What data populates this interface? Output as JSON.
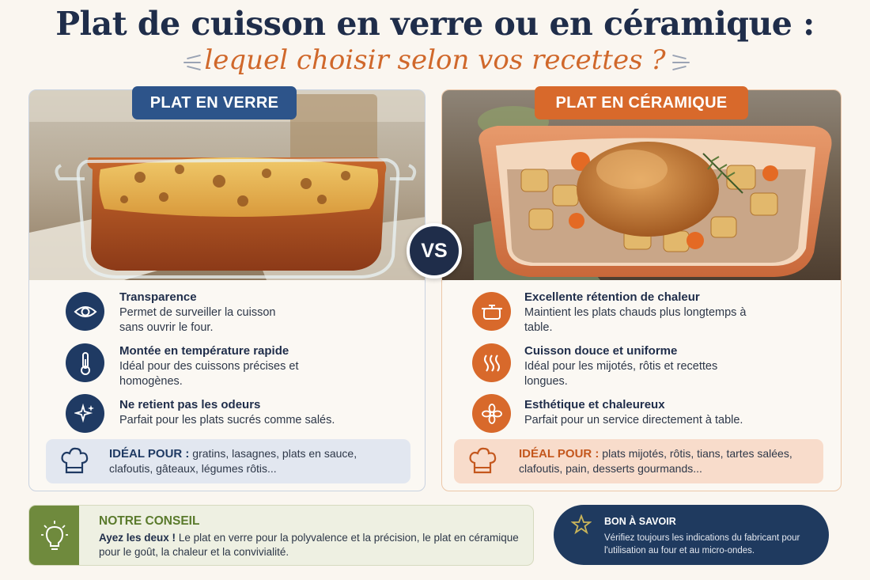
{
  "header": {
    "title": "Plat de cuisson en verre ou en céramique :",
    "subtitle": "lequel choisir selon vos recettes ?"
  },
  "vs_label": "VS",
  "verre": {
    "tag": "PLAT EN VERRE",
    "features": [
      {
        "icon": "eye-icon",
        "title": "Transparence",
        "desc": "Permet de surveiller la cuisson sans ouvrir le four."
      },
      {
        "icon": "thermometer-icon",
        "title": "Montée en température rapide",
        "desc": "Idéal pour des cuissons précises et homogènes."
      },
      {
        "icon": "sparkle-icon",
        "title": "Ne retient pas les odeurs",
        "desc": "Parfait pour les plats sucrés comme salés."
      }
    ],
    "ideal_label": "IDÉAL POUR :",
    "ideal_text": "gratins, lasagnes, plats en sauce, clafoutis, gâteaux, légumes rôtis..."
  },
  "ceramique": {
    "tag": "PLAT EN CÉRAMIQUE",
    "features": [
      {
        "icon": "pot-icon",
        "title": "Excellente rétention de chaleur",
        "desc": "Maintient les plats chauds plus longtemps à table."
      },
      {
        "icon": "heat-waves-icon",
        "title": "Cuisson douce et uniforme",
        "desc": "Idéal pour les mijotés, rôtis et recettes longues."
      },
      {
        "icon": "flower-icon",
        "title": "Esthétique et chaleureux",
        "desc": "Parfait pour un service directement à table."
      }
    ],
    "ideal_label": "IDÉAL POUR :",
    "ideal_text": "plats mijotés, rôtis, tians, tartes salées, clafoutis, pain, desserts gourmands..."
  },
  "conseil": {
    "title": "NOTRE CONSEIL",
    "lead": "Ayez les deux !",
    "text": "Le plat en verre pour la polyvalence et la précision, le plat en céramique pour le goût, la chaleur et la convivialité."
  },
  "bon_a_savoir": {
    "title": "BON À SAVOIR",
    "text": "Vérifiez toujours les indications du fabricant pour l'utilisation au four et au micro-ondes."
  },
  "colors": {
    "navy": "#1f2d4a",
    "blue_accent": "#2d548a",
    "orange_accent": "#d8692b",
    "green_accent": "#6f8a3d"
  }
}
